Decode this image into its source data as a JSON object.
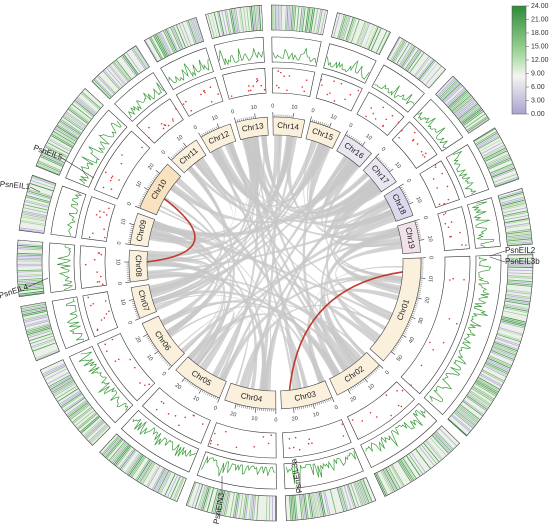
{
  "colorbar": {
    "range": [
      0,
      24
    ],
    "ticks": [
      {
        "value": 24,
        "label": "24.00"
      },
      {
        "value": 21,
        "label": "21.00"
      },
      {
        "value": 18,
        "label": "18.00"
      },
      {
        "value": 15,
        "label": "15.00"
      },
      {
        "value": 12,
        "label": "12.00"
      },
      {
        "value": 9,
        "label": "9.00"
      },
      {
        "value": 6,
        "label": "6.00"
      },
      {
        "value": 3,
        "label": "3.00"
      },
      {
        "value": 0,
        "label": "0.00"
      }
    ]
  },
  "chromosomes": [
    {
      "name": "Chr01",
      "ticks": [
        0,
        10,
        20,
        30,
        40,
        50
      ],
      "color": "#fbf0dc"
    },
    {
      "name": "Chr02",
      "ticks": [
        0,
        10,
        20
      ],
      "color": "#fbf0dc"
    },
    {
      "name": "Chr03",
      "ticks": [
        0,
        10,
        20
      ],
      "color": "#fbf0dc"
    },
    {
      "name": "Chr04",
      "ticks": [
        0,
        10,
        20
      ],
      "color": "#fbf0dc"
    },
    {
      "name": "Chr05",
      "ticks": [
        0,
        10,
        20
      ],
      "color": "#fbf0dc"
    },
    {
      "name": "Chr06",
      "ticks": [
        0,
        10,
        20
      ],
      "color": "#fbf0dc"
    },
    {
      "name": "Chr07",
      "ticks": [
        0,
        10
      ],
      "color": "#fbf0dc"
    },
    {
      "name": "Chr08",
      "ticks": [
        0,
        10
      ],
      "color": "#fbf0dc"
    },
    {
      "name": "Chr09",
      "ticks": [
        0,
        10
      ],
      "color": "#fbf0dc"
    },
    {
      "name": "Chr10",
      "ticks": [
        0,
        10,
        20
      ],
      "color": "#f8e2bf"
    },
    {
      "name": "Chr11",
      "ticks": [
        0,
        10
      ],
      "color": "#fbf0dc"
    },
    {
      "name": "Chr12",
      "ticks": [
        0,
        10
      ],
      "color": "#fbf0dc"
    },
    {
      "name": "Chr13",
      "ticks": [
        0,
        10
      ],
      "color": "#fbf0dc"
    },
    {
      "name": "Chr14",
      "ticks": [
        0,
        10
      ],
      "color": "#fbf0dc"
    },
    {
      "name": "Chr15",
      "ticks": [
        0,
        10
      ],
      "color": "#fbf0dc"
    },
    {
      "name": "Chr16",
      "ticks": [
        0,
        10
      ],
      "color": "#e9e6f2"
    },
    {
      "name": "Chr17",
      "ticks": [
        0,
        10
      ],
      "color": "#e9e6f2"
    },
    {
      "name": "Chr18",
      "ticks": [
        0,
        10
      ],
      "color": "#dcd8ee"
    },
    {
      "name": "Chr19",
      "ticks": [
        0,
        10
      ],
      "color": "#f1e2ea"
    }
  ],
  "genes": [
    "PsnEIL5",
    "PsnEIL1",
    "PsnEIL4",
    "PsnEIL2",
    "PsnEIL3b",
    "PsnEIN3",
    "PsnEIL3a"
  ]
}
